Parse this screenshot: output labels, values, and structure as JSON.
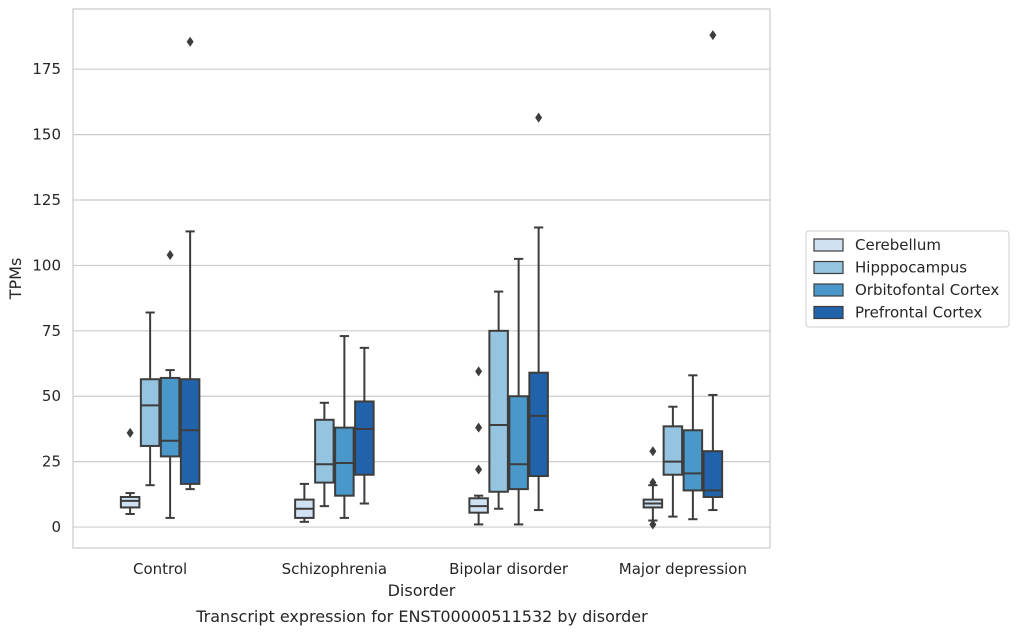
{
  "caption": "Transcript expression for ENST00000511532 by disorder",
  "chart_data": {
    "type": "box",
    "title": "",
    "xlabel": "Disorder",
    "ylabel": "TPMs",
    "ylim": [
      -8,
      198
    ],
    "yticks": [
      0,
      25,
      50,
      75,
      100,
      125,
      150,
      175
    ],
    "grid": "horizontal",
    "legend_position": "right-outside",
    "categories": [
      "Control",
      "Schizophrenia",
      "Bipolar disorder",
      "Major depression"
    ],
    "series": [
      {
        "name": "Cerebellum",
        "color": "#d0e1f2",
        "boxes": [
          {
            "whisker_low": 5,
            "q1": 7.5,
            "median": 10,
            "q3": 11.5,
            "whisker_high": 13,
            "outliers": [
              36
            ]
          },
          {
            "whisker_low": 2,
            "q1": 3.5,
            "median": 7,
            "q3": 10.5,
            "whisker_high": 16.5,
            "outliers": []
          },
          {
            "whisker_low": 1,
            "q1": 5.5,
            "median": 8,
            "q3": 11,
            "whisker_high": 12,
            "outliers": [
              22,
              38,
              59.5
            ]
          },
          {
            "whisker_low": 2.5,
            "q1": 7.5,
            "median": 9,
            "q3": 10.5,
            "whisker_high": 16,
            "outliers": [
              1,
              17,
              29
            ]
          }
        ]
      },
      {
        "name": "Hipppocampus",
        "color": "#94c4df",
        "boxes": [
          {
            "whisker_low": 16,
            "q1": 31,
            "median": 46.5,
            "q3": 56.5,
            "whisker_high": 82,
            "outliers": []
          },
          {
            "whisker_low": 8,
            "q1": 17,
            "median": 24,
            "q3": 41,
            "whisker_high": 47.5,
            "outliers": []
          },
          {
            "whisker_low": 7,
            "q1": 13.5,
            "median": 39,
            "q3": 75,
            "whisker_high": 90,
            "outliers": []
          },
          {
            "whisker_low": 4,
            "q1": 20,
            "median": 25,
            "q3": 38.5,
            "whisker_high": 46,
            "outliers": []
          }
        ]
      },
      {
        "name": "Orbitofontal Cortex",
        "color": "#4a98c9",
        "boxes": [
          {
            "whisker_low": 3.5,
            "q1": 27,
            "median": 33,
            "q3": 57,
            "whisker_high": 60,
            "outliers": [
              104
            ]
          },
          {
            "whisker_low": 3.5,
            "q1": 12,
            "median": 24.5,
            "q3": 38,
            "whisker_high": 73,
            "outliers": []
          },
          {
            "whisker_low": 1,
            "q1": 14.5,
            "median": 24,
            "q3": 50,
            "whisker_high": 102.5,
            "outliers": []
          },
          {
            "whisker_low": 3,
            "q1": 14,
            "median": 20.5,
            "q3": 37,
            "whisker_high": 58,
            "outliers": []
          }
        ]
      },
      {
        "name": "Prefrontal Cortex",
        "color": "#2163aa",
        "boxes": [
          {
            "whisker_low": 14.5,
            "q1": 16.5,
            "median": 37,
            "q3": 56.5,
            "whisker_high": 113,
            "outliers": [
              185.5
            ]
          },
          {
            "whisker_low": 9,
            "q1": 20,
            "median": 37.5,
            "q3": 48,
            "whisker_high": 68.5,
            "outliers": []
          },
          {
            "whisker_low": 6.5,
            "q1": 19.5,
            "median": 42.5,
            "q3": 59,
            "whisker_high": 114.5,
            "outliers": [
              156.5
            ]
          },
          {
            "whisker_low": 6.5,
            "q1": 11.5,
            "median": 14,
            "q3": 29,
            "whisker_high": 50.5,
            "outliers": [
              188
            ]
          }
        ]
      }
    ]
  }
}
